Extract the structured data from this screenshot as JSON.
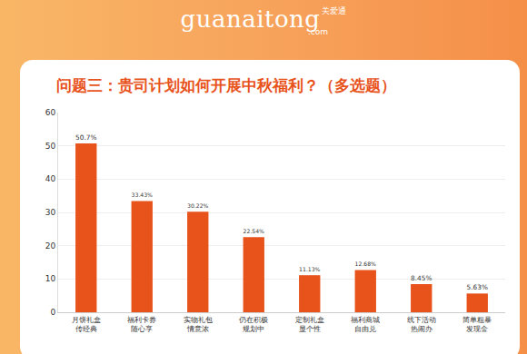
{
  "header": {
    "logo": "guanaitong",
    "logo_cn": "关爱通",
    "domain": ".com"
  },
  "chart_data": {
    "type": "bar",
    "title": "问题三：贵司计划如何开展中秋福利？（多选题）",
    "categories": [
      "月饼礼盒\n传经典",
      "福利卡券\n随心享",
      "实物礼包\n情意浓",
      "仍在积极\n规划中",
      "定制礼盒\n显个性",
      "福利商城\n自由兑",
      "线下活动\n热闹办",
      "简单粗暴\n发现金"
    ],
    "values": [
      50.7,
      33.43,
      30.22,
      22.54,
      11.13,
      12.68,
      8.45,
      5.63
    ],
    "value_labels": [
      "50.7%",
      "33.43%",
      "30.22%",
      "22.54%",
      "11.13%",
      "12.68%",
      "8.45%",
      "5.63%"
    ],
    "color": "#e8531c",
    "ylim": [
      0,
      60
    ],
    "yticks": [
      0,
      10,
      20,
      30,
      40,
      50,
      60
    ],
    "grid": true,
    "data_labels": true
  }
}
